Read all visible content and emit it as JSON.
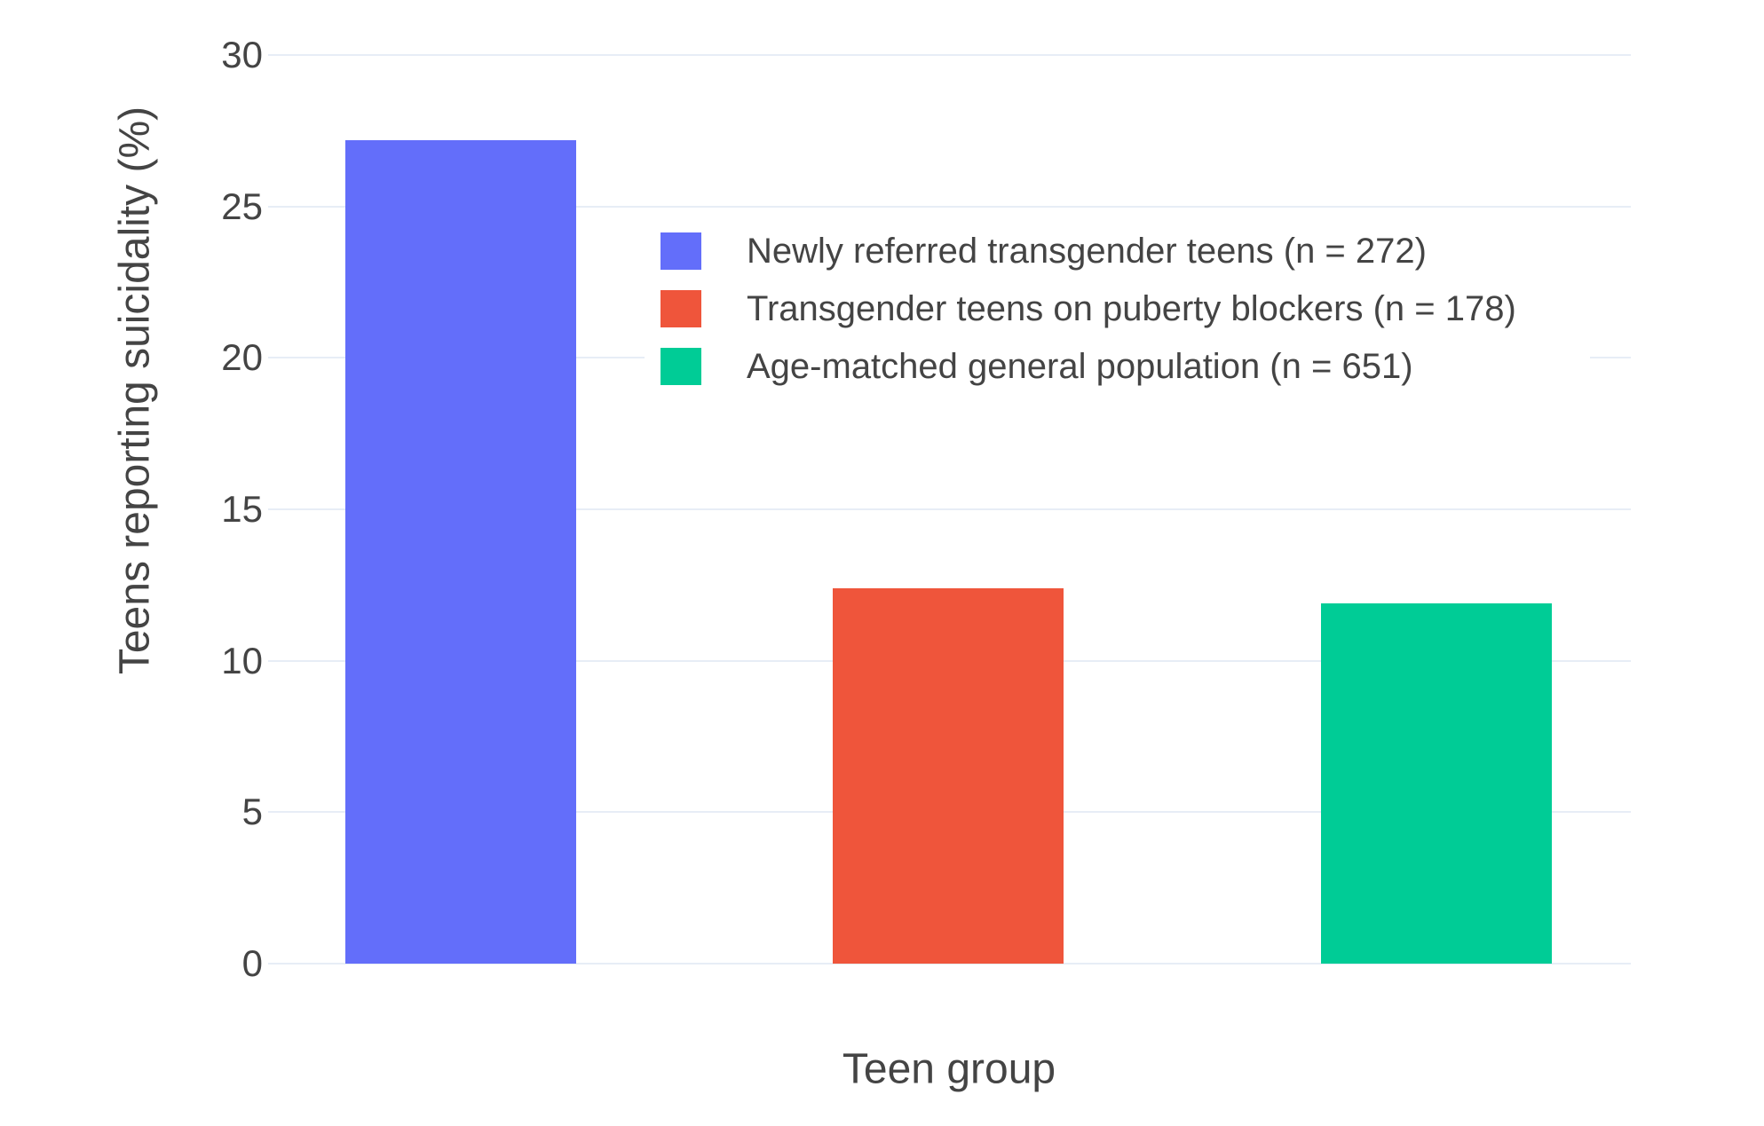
{
  "chart_data": {
    "type": "bar",
    "title": "",
    "xlabel": "Teen group",
    "ylabel": "Teens reporting suicidality (%)",
    "categories": [
      "Newly referred transgender teens (n = 272)",
      "Transgender teens on puberty blockers (n = 178)",
      "Age-matched general population (n = 651)"
    ],
    "series": [
      {
        "name": "Newly referred transgender teens (n = 272)",
        "value": 27.2,
        "color": "#636EFA"
      },
      {
        "name": "Transgender teens on puberty blockers (n = 178)",
        "value": 12.4,
        "color": "#EF553B"
      },
      {
        "name": "Age-matched general population (n = 651)",
        "value": 11.9,
        "color": "#00CC96"
      }
    ],
    "yticks": [
      30,
      25,
      20,
      15,
      10,
      5,
      0
    ],
    "ylim": [
      0,
      30
    ],
    "grid": true,
    "legend_position": "inside-upper-right",
    "colors": {
      "grid": "#e7edf6",
      "text": "#444444",
      "background": "#ffffff",
      "legend_background": "#ffffff"
    }
  }
}
